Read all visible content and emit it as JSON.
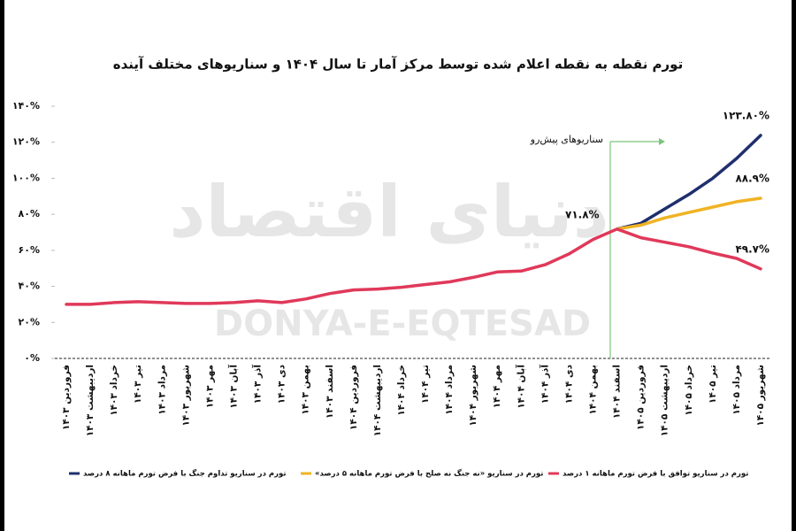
{
  "chart_data": {
    "type": "line",
    "title": "تورم نقطه به نقطه اعلام شده توسط مرکز آمار تا سال ۱۴۰۴ و سناریوهای مختلف آینده",
    "watermark": [
      "دنیای اقتصاد",
      "DONYA-E-EQTESAD"
    ],
    "annotation": "سناریوهای پیش‌رو",
    "categories": [
      "فروردین ۱۴۰۳",
      "اردیبهشت ۱۴۰۳",
      "خرداد ۱۴۰۳",
      "تیر ۱۴۰۳",
      "مرداد ۱۴۰۳",
      "شهریور ۱۴۰۳",
      "مهر ۱۴۰۳",
      "آبان ۱۴۰۳",
      "آذر ۱۴۰۳",
      "دی ۱۴۰۳",
      "بهمن ۱۴۰۳",
      "اسفند ۱۴۰۳",
      "فروردین ۱۴۰۴",
      "اردیبهشت ۱۴۰۴",
      "خرداد ۱۴۰۴",
      "تیر ۱۴۰۴",
      "مرداد ۱۴۰۴",
      "شهریور ۱۴۰۴",
      "مهر ۱۴۰۴",
      "آبان ۱۴۰۴",
      "آذر ۱۴۰۴",
      "دی ۱۴۰۴",
      "بهمن ۱۴۰۴",
      "اسفند ۱۴۰۴",
      "فروردین ۱۴۰۵",
      "اردیبهشت ۱۴۰۵",
      "خرداد ۱۴۰۵",
      "تیر ۱۴۰۵",
      "مرداد ۱۴۰۵",
      "شهریور ۱۴۰۵"
    ],
    "series": [
      {
        "name": "تورم در سناریو تداوم جنگ با فرض تورم ماهانه ۸ درصد",
        "color": "#1f2f6e",
        "values": [
          null,
          null,
          null,
          null,
          null,
          null,
          null,
          null,
          null,
          null,
          null,
          null,
          null,
          null,
          null,
          null,
          null,
          null,
          null,
          null,
          null,
          null,
          null,
          71.8,
          75,
          83,
          91,
          100,
          111,
          123.8
        ],
        "value_labels": [
          null,
          null,
          null,
          null,
          null,
          null,
          null,
          null,
          null,
          null,
          null,
          null,
          null,
          null,
          null,
          null,
          null,
          null,
          null,
          null,
          null,
          null,
          null,
          null,
          null,
          null,
          null,
          null,
          null,
          "۱۲۳.۸۰%"
        ]
      },
      {
        "name": "تورم در سناریو «نه جنگ نه صلح با فرض تورم ماهانه ۵ درصد»",
        "color": "#f0b323",
        "values": [
          null,
          null,
          null,
          null,
          null,
          null,
          null,
          null,
          null,
          null,
          null,
          null,
          null,
          null,
          null,
          null,
          null,
          null,
          null,
          null,
          null,
          null,
          null,
          71.8,
          74,
          78,
          81,
          84,
          87,
          88.9
        ],
        "value_labels": [
          null,
          null,
          null,
          null,
          null,
          null,
          null,
          null,
          null,
          null,
          null,
          null,
          null,
          null,
          null,
          null,
          null,
          null,
          null,
          null,
          null,
          null,
          null,
          null,
          null,
          null,
          null,
          null,
          null,
          "۸۸.۹%"
        ]
      },
      {
        "name": "تورم در سناریو توافق با فرض تورم ماهانه ۱ درصد",
        "color": "#e0395a",
        "values": [
          30,
          30,
          31,
          31.5,
          31,
          30.5,
          30.5,
          31,
          32,
          31,
          33,
          36,
          38,
          38.5,
          39.5,
          41,
          42.5,
          45,
          48,
          48.5,
          52,
          58,
          66,
          71.8,
          67,
          64.5,
          62,
          58.5,
          55.5,
          49.7
        ],
        "value_labels": [
          null,
          null,
          null,
          null,
          null,
          null,
          null,
          null,
          null,
          null,
          null,
          null,
          null,
          null,
          null,
          null,
          null,
          null,
          null,
          null,
          null,
          null,
          null,
          "۷۱.۸%",
          null,
          null,
          null,
          null,
          null,
          "۴۹.۷%"
        ]
      }
    ],
    "ylim": [
      0,
      140
    ],
    "yticks": [
      {
        "value": 0,
        "label": "۰%"
      },
      {
        "value": 20,
        "label": "۲۰%"
      },
      {
        "value": 40,
        "label": "۴۰%"
      },
      {
        "value": 60,
        "label": "۶۰%"
      },
      {
        "value": 80,
        "label": "۸۰%"
      },
      {
        "value": 100,
        "label": "۱۰۰%"
      },
      {
        "value": 120,
        "label": "۱۲۰%"
      },
      {
        "value": 140,
        "label": "۱۴۰%"
      }
    ],
    "grid": false
  }
}
